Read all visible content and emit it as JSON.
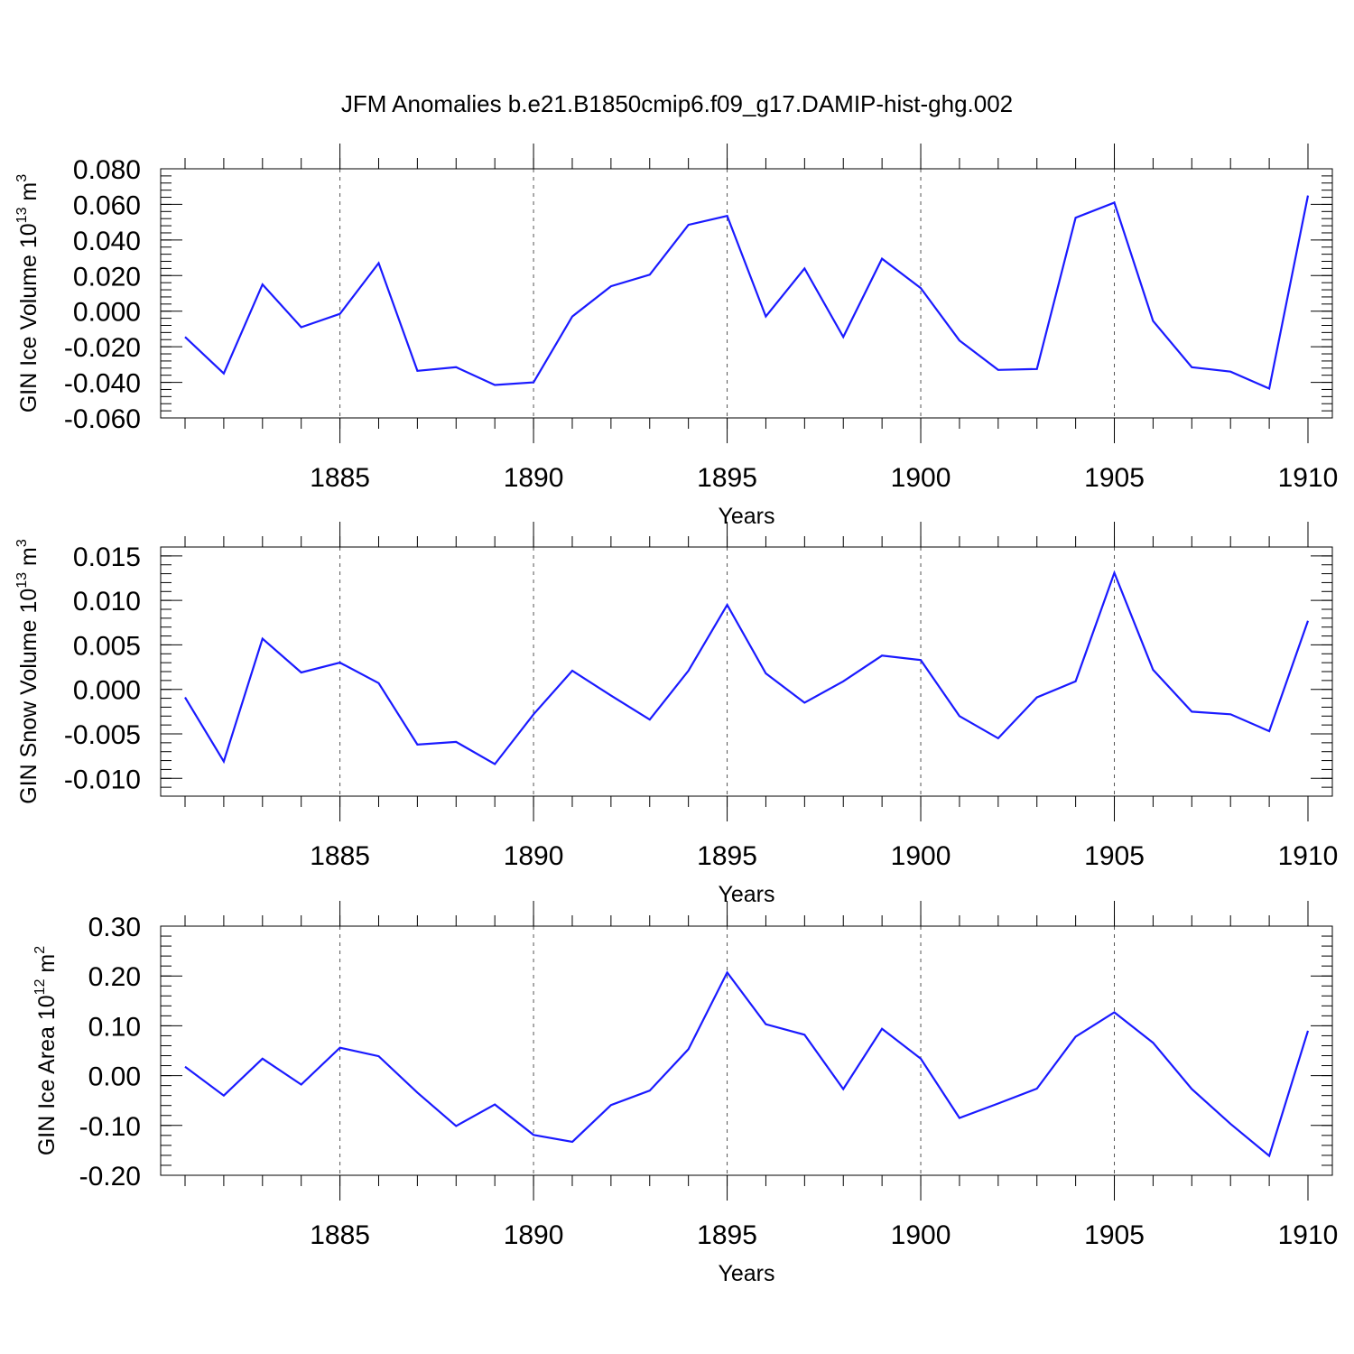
{
  "title": "JFM Anomalies b.e21.B1850cmip6.f09_g17.DAMIP-hist-ghg.002",
  "line_color": "#1a1aff",
  "chart_data": [
    {
      "type": "line",
      "ylabel_main": "GIN Ice Volume 10",
      "ylabel_exp": "13",
      "ylabel_unit": " m",
      "ylabel_unit_exp": "3",
      "xlabel": "Years",
      "xlim": [
        1881,
        1910
      ],
      "ylim": [
        -0.06,
        0.08
      ],
      "y_ticks": [
        -0.06,
        -0.04,
        -0.02,
        0.0,
        0.02,
        0.04,
        0.06,
        0.08
      ],
      "y_tick_labels": [
        "-0.060",
        "-0.040",
        "-0.020",
        "0.000",
        "0.020",
        "0.040",
        "0.060",
        "0.080"
      ],
      "y_minor_step": 0.004,
      "x_ticks": [
        1885,
        1890,
        1895,
        1900,
        1905,
        1910
      ],
      "x_tick_labels": [
        "1885",
        "1890",
        "1895",
        "1900",
        "1905",
        "1910"
      ],
      "x": [
        1881,
        1882,
        1883,
        1884,
        1885,
        1886,
        1887,
        1888,
        1889,
        1890,
        1891,
        1892,
        1893,
        1894,
        1895,
        1896,
        1897,
        1898,
        1899,
        1900,
        1901,
        1902,
        1903,
        1904,
        1905,
        1906,
        1907,
        1908,
        1909,
        1910
      ],
      "values": [
        -0.0145,
        -0.035,
        0.015,
        -0.009,
        -0.0015,
        0.027,
        -0.0335,
        -0.0315,
        -0.0415,
        -0.04,
        -0.003,
        0.014,
        0.0205,
        0.0485,
        0.0535,
        -0.003,
        0.024,
        -0.0145,
        0.0295,
        0.013,
        -0.0165,
        -0.033,
        -0.0325,
        0.0525,
        0.061,
        -0.0055,
        -0.0315,
        -0.034,
        -0.0435,
        0.065
      ]
    },
    {
      "type": "line",
      "ylabel_main": "GIN Snow Volume 10",
      "ylabel_exp": "13",
      "ylabel_unit": " m",
      "ylabel_unit_exp": "3",
      "xlabel": "Years",
      "xlim": [
        1881,
        1910
      ],
      "ylim": [
        -0.012,
        0.016
      ],
      "y_ticks": [
        -0.01,
        -0.005,
        0.0,
        0.005,
        0.01,
        0.015
      ],
      "y_tick_labels": [
        "-0.010",
        "-0.005",
        "0.000",
        "0.005",
        "0.010",
        "0.015"
      ],
      "y_minor_step": 0.001,
      "x_ticks": [
        1885,
        1890,
        1895,
        1900,
        1905,
        1910
      ],
      "x_tick_labels": [
        "1885",
        "1890",
        "1895",
        "1900",
        "1905",
        "1910"
      ],
      "x": [
        1881,
        1882,
        1883,
        1884,
        1885,
        1886,
        1887,
        1888,
        1889,
        1890,
        1891,
        1892,
        1893,
        1894,
        1895,
        1896,
        1897,
        1898,
        1899,
        1900,
        1901,
        1902,
        1903,
        1904,
        1905,
        1906,
        1907,
        1908,
        1909,
        1910
      ],
      "values": [
        -0.0009,
        -0.0081,
        0.0057,
        0.0019,
        0.003,
        0.0007,
        -0.0062,
        -0.0059,
        -0.0084,
        -0.0028,
        0.0021,
        -0.0007,
        -0.0034,
        0.0021,
        0.0095,
        0.0018,
        -0.0015,
        0.0009,
        0.0038,
        0.0033,
        -0.003,
        -0.0055,
        -0.0009,
        0.0009,
        0.0131,
        0.0022,
        -0.0025,
        -0.0028,
        -0.0047,
        0.0077
      ]
    },
    {
      "type": "line",
      "ylabel_main": "GIN Ice Area 10",
      "ylabel_exp": "12",
      "ylabel_unit": " m",
      "ylabel_unit_exp": "2",
      "xlabel": "Years",
      "xlim": [
        1881,
        1910
      ],
      "ylim": [
        -0.2,
        0.3
      ],
      "y_ticks": [
        -0.2,
        -0.1,
        0.0,
        0.1,
        0.2,
        0.3
      ],
      "y_tick_labels": [
        "-0.20",
        "-0.10",
        "0.00",
        "0.10",
        "0.20",
        "0.30"
      ],
      "y_minor_step": 0.02,
      "x_ticks": [
        1885,
        1890,
        1895,
        1900,
        1905,
        1910
      ],
      "x_tick_labels": [
        "1885",
        "1890",
        "1895",
        "1900",
        "1905",
        "1910"
      ],
      "x": [
        1881,
        1882,
        1883,
        1884,
        1885,
        1886,
        1887,
        1888,
        1889,
        1890,
        1891,
        1892,
        1893,
        1894,
        1895,
        1896,
        1897,
        1898,
        1899,
        1900,
        1901,
        1902,
        1903,
        1904,
        1905,
        1906,
        1907,
        1908,
        1909,
        1910
      ],
      "values": [
        0.018,
        -0.04,
        0.034,
        -0.018,
        0.056,
        0.039,
        -0.034,
        -0.101,
        -0.058,
        -0.119,
        -0.133,
        -0.059,
        -0.03,
        0.053,
        0.207,
        0.103,
        0.082,
        -0.027,
        0.094,
        0.034,
        -0.085,
        -0.056,
        -0.026,
        0.078,
        0.127,
        0.066,
        -0.027,
        -0.097,
        -0.161,
        0.09
      ]
    }
  ]
}
